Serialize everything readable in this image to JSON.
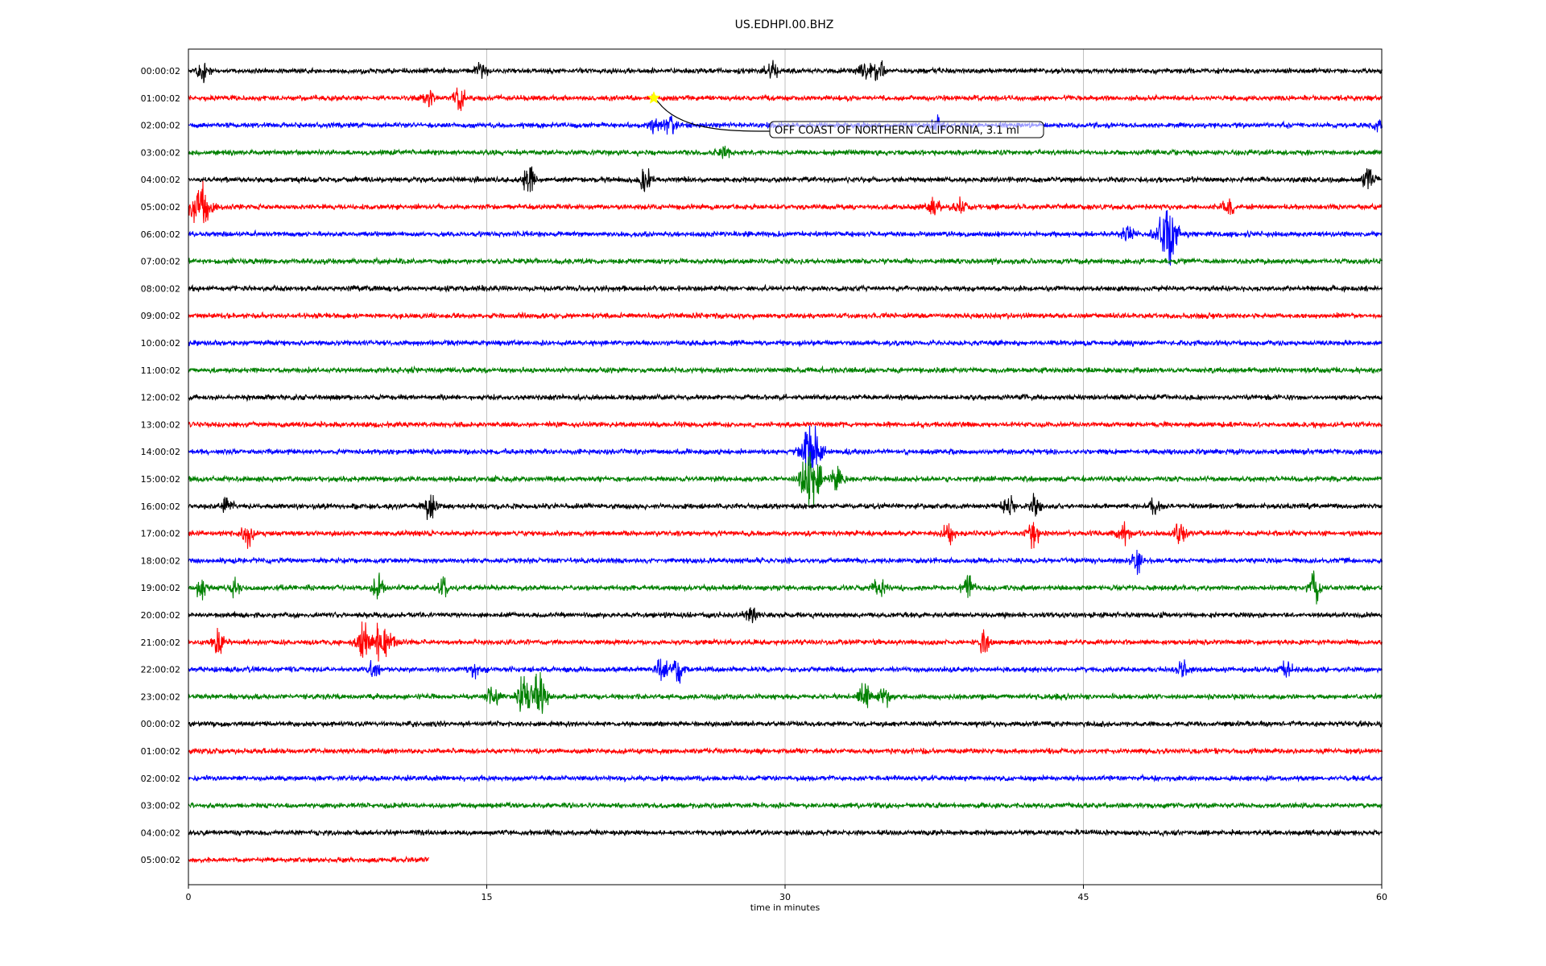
{
  "chart_data": {
    "type": "line",
    "title": "US.EDHPI.00.BHZ",
    "xlabel": "time in minutes",
    "ylabel": "",
    "xlim": [
      0,
      60
    ],
    "xticks": [
      0,
      15,
      30,
      45,
      60
    ],
    "vertical_grid": true,
    "trace_colors": [
      "#000000",
      "#ff0000",
      "#0000ff",
      "#008000"
    ],
    "row_labels": [
      "00:00:02",
      "01:00:02",
      "02:00:02",
      "03:00:02",
      "04:00:02",
      "05:00:02",
      "06:00:02",
      "07:00:02",
      "08:00:02",
      "09:00:02",
      "10:00:02",
      "11:00:02",
      "12:00:02",
      "13:00:02",
      "14:00:02",
      "15:00:02",
      "16:00:02",
      "17:00:02",
      "18:00:02",
      "19:00:02",
      "20:00:02",
      "21:00:02",
      "22:00:02",
      "23:00:02",
      "00:00:02",
      "01:00:02",
      "02:00:02",
      "03:00:02",
      "04:00:02",
      "05:00:02"
    ],
    "last_row_end_minute": 12.1,
    "events": [
      {
        "row": 0,
        "minute": 0.7,
        "amp": 1.6
      },
      {
        "row": 0,
        "minute": 14.7,
        "amp": 0.9
      },
      {
        "row": 0,
        "minute": 29.3,
        "amp": 1.5
      },
      {
        "row": 0,
        "minute": 34.0,
        "amp": 1.3
      },
      {
        "row": 0,
        "minute": 34.7,
        "amp": 1.8
      },
      {
        "row": 1,
        "minute": 12.1,
        "amp": 1.1
      },
      {
        "row": 1,
        "minute": 13.6,
        "amp": 1.7
      },
      {
        "row": 2,
        "minute": 23.5,
        "amp": 1.4
      },
      {
        "row": 2,
        "minute": 24.2,
        "amp": 1.2
      },
      {
        "row": 2,
        "minute": 37.6,
        "amp": 1.1
      },
      {
        "row": 2,
        "minute": 59.9,
        "amp": 1.0
      },
      {
        "row": 3,
        "minute": 26.9,
        "amp": 1.0
      },
      {
        "row": 4,
        "minute": 17.1,
        "amp": 1.9
      },
      {
        "row": 4,
        "minute": 22.9,
        "amp": 2.0
      },
      {
        "row": 4,
        "minute": 59.3,
        "amp": 1.8
      },
      {
        "row": 5,
        "minute": 0.6,
        "amp": 2.8
      },
      {
        "row": 5,
        "minute": 37.5,
        "amp": 1.1
      },
      {
        "row": 5,
        "minute": 38.8,
        "amp": 1.1
      },
      {
        "row": 5,
        "minute": 52.3,
        "amp": 1.1
      },
      {
        "row": 6,
        "minute": 47.2,
        "amp": 1.3
      },
      {
        "row": 6,
        "minute": 49.2,
        "amp": 4.8
      },
      {
        "row": 14,
        "minute": 31.3,
        "amp": 3.6
      },
      {
        "row": 15,
        "minute": 31.3,
        "amp": 4.5
      },
      {
        "row": 15,
        "minute": 32.6,
        "amp": 1.6
      },
      {
        "row": 16,
        "minute": 1.9,
        "amp": 1.0
      },
      {
        "row": 16,
        "minute": 12.1,
        "amp": 2.2
      },
      {
        "row": 16,
        "minute": 41.2,
        "amp": 1.7
      },
      {
        "row": 16,
        "minute": 42.6,
        "amp": 1.6
      },
      {
        "row": 16,
        "minute": 48.6,
        "amp": 1.0
      },
      {
        "row": 17,
        "minute": 3.0,
        "amp": 1.8
      },
      {
        "row": 17,
        "minute": 38.2,
        "amp": 1.7
      },
      {
        "row": 17,
        "minute": 42.5,
        "amp": 1.8
      },
      {
        "row": 17,
        "minute": 47.0,
        "amp": 1.6
      },
      {
        "row": 17,
        "minute": 49.8,
        "amp": 1.5
      },
      {
        "row": 18,
        "minute": 47.7,
        "amp": 2.0
      },
      {
        "row": 19,
        "minute": 0.6,
        "amp": 1.1
      },
      {
        "row": 19,
        "minute": 2.4,
        "amp": 1.4
      },
      {
        "row": 19,
        "minute": 9.5,
        "amp": 2.0
      },
      {
        "row": 19,
        "minute": 12.8,
        "amp": 1.8
      },
      {
        "row": 19,
        "minute": 34.7,
        "amp": 1.6
      },
      {
        "row": 19,
        "minute": 39.2,
        "amp": 1.6
      },
      {
        "row": 19,
        "minute": 56.6,
        "amp": 2.4
      },
      {
        "row": 20,
        "minute": 28.3,
        "amp": 1.6
      },
      {
        "row": 21,
        "minute": 1.5,
        "amp": 1.5
      },
      {
        "row": 21,
        "minute": 8.8,
        "amp": 2.5
      },
      {
        "row": 21,
        "minute": 9.7,
        "amp": 2.6
      },
      {
        "row": 21,
        "minute": 40.0,
        "amp": 1.8
      },
      {
        "row": 22,
        "minute": 9.3,
        "amp": 1.4
      },
      {
        "row": 22,
        "minute": 14.4,
        "amp": 1.1
      },
      {
        "row": 22,
        "minute": 23.8,
        "amp": 1.7
      },
      {
        "row": 22,
        "minute": 24.6,
        "amp": 1.6
      },
      {
        "row": 22,
        "minute": 50.0,
        "amp": 1.2
      },
      {
        "row": 22,
        "minute": 55.2,
        "amp": 1.3
      },
      {
        "row": 23,
        "minute": 15.3,
        "amp": 1.6
      },
      {
        "row": 23,
        "minute": 16.8,
        "amp": 2.4
      },
      {
        "row": 23,
        "minute": 17.5,
        "amp": 3.0
      },
      {
        "row": 23,
        "minute": 34.0,
        "amp": 2.4
      },
      {
        "row": 23,
        "minute": 35.0,
        "amp": 1.6
      }
    ],
    "annotation": {
      "text": "OFF COAST OF NORTHERN CALIFORNIA, 3.1 ml",
      "row": 1,
      "minute": 23.4,
      "marker_color": "#ffff00"
    }
  }
}
